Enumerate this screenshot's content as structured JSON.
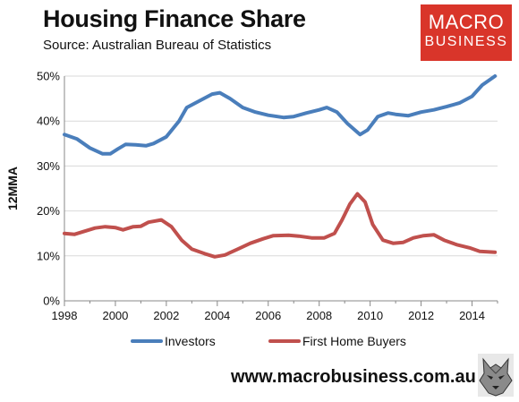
{
  "header": {
    "title": "Housing Finance Share",
    "subtitle": "Source: Australian Bureau of Statistics"
  },
  "logo": {
    "line1": "MACRO",
    "line2": "BUSINESS",
    "color": "#d9352a"
  },
  "footer": {
    "url": "www.macrobusiness.com.au",
    "mascot_icon": "wolf-icon"
  },
  "chart_data": {
    "type": "line",
    "ylabel": "12MMA",
    "xlabel": "",
    "xlim": [
      1998,
      2015
    ],
    "ylim": [
      0,
      50
    ],
    "x_ticks": [
      1998,
      2000,
      2002,
      2004,
      2006,
      2008,
      2010,
      2012,
      2014
    ],
    "x_tick_labels": [
      "1998",
      "2000",
      "2002",
      "2004",
      "2006",
      "2008",
      "2010",
      "2012",
      "2014"
    ],
    "y_ticks": [
      0,
      10,
      20,
      30,
      40,
      50
    ],
    "y_tick_labels": [
      "0%",
      "10%",
      "20%",
      "30%",
      "40%",
      "50%"
    ],
    "grid": "horizontal",
    "legend": "bottom",
    "series": [
      {
        "name": "Investors",
        "color": "#4a7ebb",
        "points": [
          [
            1998.0,
            37.0
          ],
          [
            1998.5,
            36.0
          ],
          [
            1999.0,
            34.0
          ],
          [
            1999.5,
            32.7
          ],
          [
            1999.8,
            32.7
          ],
          [
            2000.1,
            33.8
          ],
          [
            2000.4,
            34.8
          ],
          [
            2000.8,
            34.7
          ],
          [
            2001.2,
            34.5
          ],
          [
            2001.5,
            35.0
          ],
          [
            2002.0,
            36.5
          ],
          [
            2002.5,
            40.0
          ],
          [
            2002.8,
            43.0
          ],
          [
            2003.3,
            44.5
          ],
          [
            2003.8,
            46.0
          ],
          [
            2004.1,
            46.3
          ],
          [
            2004.5,
            45.0
          ],
          [
            2005.0,
            43.0
          ],
          [
            2005.5,
            42.0
          ],
          [
            2006.0,
            41.3
          ],
          [
            2006.6,
            40.8
          ],
          [
            2007.0,
            41.0
          ],
          [
            2007.5,
            41.8
          ],
          [
            2008.0,
            42.5
          ],
          [
            2008.3,
            43.0
          ],
          [
            2008.7,
            42.0
          ],
          [
            2009.1,
            39.5
          ],
          [
            2009.6,
            37.0
          ],
          [
            2009.9,
            38.0
          ],
          [
            2010.3,
            41.0
          ],
          [
            2010.7,
            41.8
          ],
          [
            2011.0,
            41.5
          ],
          [
            2011.5,
            41.2
          ],
          [
            2012.0,
            42.0
          ],
          [
            2012.5,
            42.5
          ],
          [
            2013.0,
            43.2
          ],
          [
            2013.5,
            44.0
          ],
          [
            2014.0,
            45.5
          ],
          [
            2014.4,
            48.0
          ],
          [
            2014.9,
            50.0
          ]
        ]
      },
      {
        "name": "First Home Buyers",
        "color": "#c0504d",
        "points": [
          [
            1998.0,
            15.0
          ],
          [
            1998.4,
            14.8
          ],
          [
            1998.8,
            15.5
          ],
          [
            1999.2,
            16.2
          ],
          [
            1999.6,
            16.5
          ],
          [
            2000.0,
            16.3
          ],
          [
            2000.3,
            15.8
          ],
          [
            2000.7,
            16.5
          ],
          [
            2001.0,
            16.6
          ],
          [
            2001.3,
            17.5
          ],
          [
            2001.8,
            18.0
          ],
          [
            2002.2,
            16.5
          ],
          [
            2002.6,
            13.5
          ],
          [
            2003.0,
            11.5
          ],
          [
            2003.5,
            10.5
          ],
          [
            2003.9,
            9.8
          ],
          [
            2004.3,
            10.2
          ],
          [
            2004.8,
            11.5
          ],
          [
            2005.3,
            12.8
          ],
          [
            2005.8,
            13.8
          ],
          [
            2006.2,
            14.5
          ],
          [
            2006.8,
            14.6
          ],
          [
            2007.2,
            14.4
          ],
          [
            2007.7,
            14.0
          ],
          [
            2008.2,
            14.0
          ],
          [
            2008.6,
            15.0
          ],
          [
            2008.9,
            18.0
          ],
          [
            2009.2,
            21.5
          ],
          [
            2009.5,
            23.8
          ],
          [
            2009.8,
            22.0
          ],
          [
            2010.1,
            17.0
          ],
          [
            2010.5,
            13.5
          ],
          [
            2010.9,
            12.8
          ],
          [
            2011.3,
            13.0
          ],
          [
            2011.7,
            14.0
          ],
          [
            2012.1,
            14.5
          ],
          [
            2012.5,
            14.7
          ],
          [
            2012.9,
            13.5
          ],
          [
            2013.4,
            12.5
          ],
          [
            2013.9,
            11.8
          ],
          [
            2014.3,
            11.0
          ],
          [
            2014.9,
            10.8
          ]
        ]
      }
    ]
  }
}
